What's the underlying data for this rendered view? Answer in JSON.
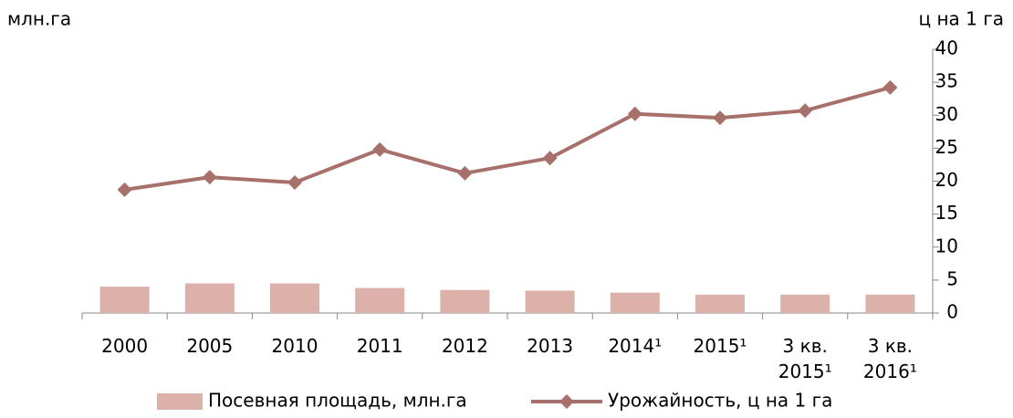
{
  "chart_data": {
    "type": "bar-line",
    "ylabel": "млн.га",
    "y2label": "ц на 1 га",
    "categories": [
      "2000",
      "2005",
      "2010",
      "2011",
      "2012",
      "2013",
      "2014¹",
      "2015¹",
      "3 кв. 2015¹",
      "3 кв. 2016¹"
    ],
    "series": [
      {
        "name": "Посевная площадь, млн.га",
        "type": "bar",
        "axis": "y2",
        "color": "#dbb1aa",
        "values": [
          4.0,
          4.5,
          4.5,
          3.8,
          3.5,
          3.4,
          3.1,
          2.8,
          2.8,
          2.8
        ]
      },
      {
        "name": "Урожайность, ц на 1 га",
        "type": "line",
        "axis": "y2",
        "color": "#a8706a",
        "values": [
          18.7,
          20.6,
          19.8,
          24.8,
          21.2,
          23.5,
          30.2,
          29.6,
          30.7,
          34.2
        ]
      }
    ],
    "y2lim": [
      0,
      40
    ],
    "y2ticks": [
      0,
      5,
      10,
      15,
      20,
      25,
      30,
      35,
      40
    ],
    "legend": "bottom"
  }
}
